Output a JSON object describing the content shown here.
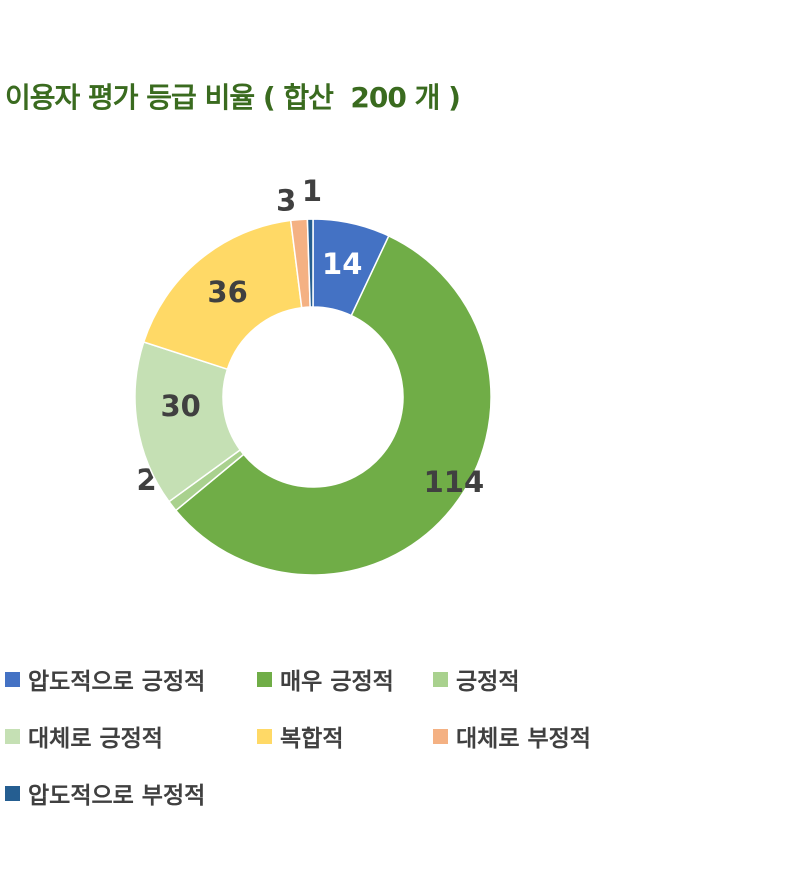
{
  "chart_data": {
    "type": "pie",
    "title": "이용자 평가 등급 비율 ( 합산  200 개 )",
    "categories": [
      "압도적으로 긍정적",
      "매우 긍정적",
      "긍정적",
      "대체로 긍정적",
      "복합적",
      "대체로 부정적",
      "압도적으로 부정적"
    ],
    "values": [
      14,
      114,
      2,
      30,
      36,
      3,
      1
    ],
    "colors": [
      "#4472c4",
      "#70ad47",
      "#a9d18e",
      "#c5e0b4",
      "#ffd966",
      "#f4b183",
      "#255e91"
    ],
    "legend_position": "bottom",
    "donut": true
  }
}
